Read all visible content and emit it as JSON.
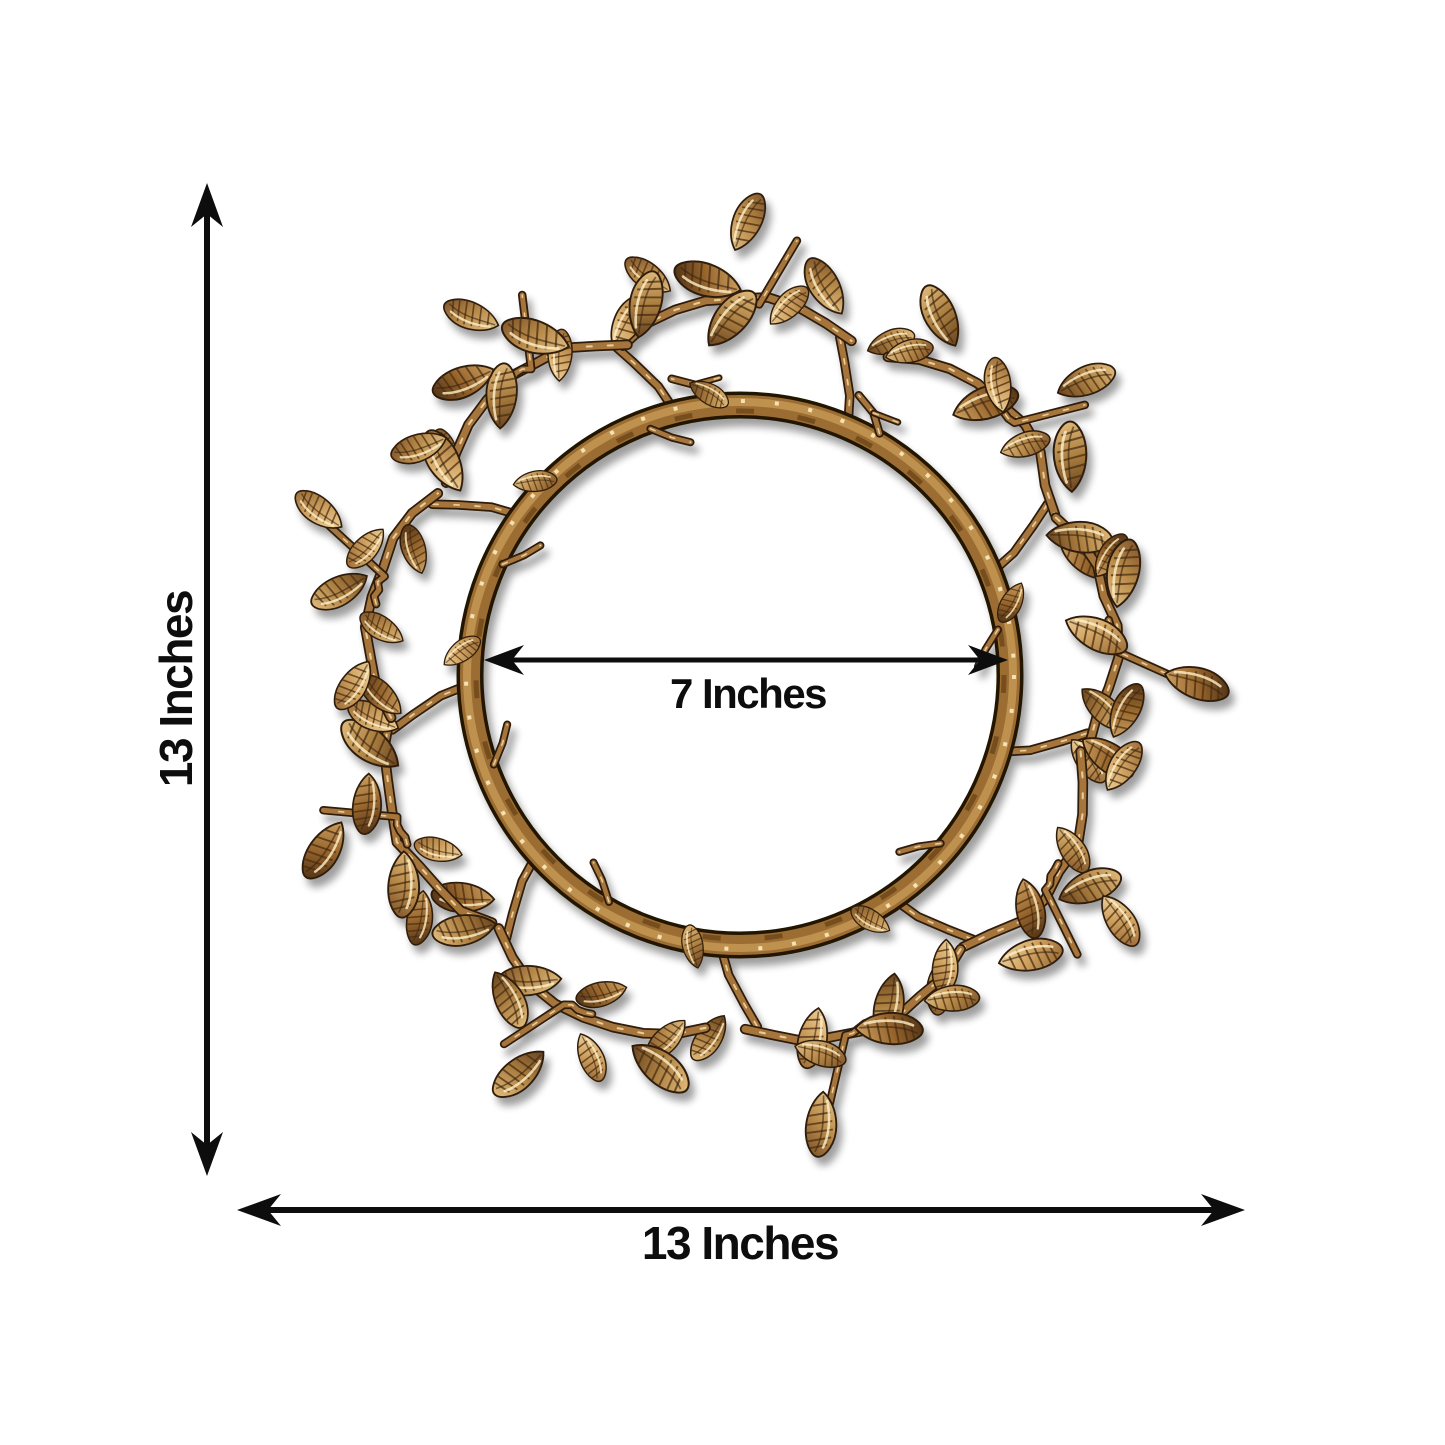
{
  "dimensions": {
    "height_label": "13 Inches",
    "width_label": "13 Inches",
    "inner_diameter_label": "7 Inches"
  },
  "annotations": {
    "height_arrow": "double-headed vertical arrow",
    "width_arrow": "double-headed horizontal arrow",
    "inner_diameter_arrow": "double-headed horizontal arrow across ring opening"
  },
  "colors": {
    "background": "#ffffff",
    "annotation_ink": "#0d0d0d",
    "gold_highlight": "#f6e0ae",
    "gold_light": "#e9c387",
    "gold_mid": "#b98b4a",
    "gold_deep": "#8a5a28",
    "bronze_dark": "#5d3a1a",
    "outline_dark": "#2e1d0b"
  }
}
